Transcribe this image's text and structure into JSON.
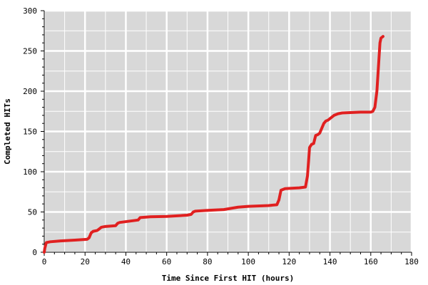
{
  "chart_data": {
    "type": "line",
    "title": "",
    "xlabel": "Time Since First HIT (hours)",
    "ylabel": "Completed HITs",
    "xlim": [
      0,
      180
    ],
    "ylim": [
      0,
      300
    ],
    "x_ticks": [
      "0",
      "20",
      "40",
      "60",
      "80",
      "100",
      "120",
      "140",
      "160",
      "180"
    ],
    "y_ticks": [
      "0",
      "50",
      "100",
      "150",
      "200",
      "250",
      "300"
    ],
    "grid": true,
    "legend": "none",
    "colors": {
      "plot_bg": "#d8d8d8",
      "grid": "#ffffff",
      "line": "#e02020"
    },
    "series": [
      {
        "x": [
          0,
          0.3,
          1,
          3,
          8,
          15,
          21,
          22,
          23,
          24,
          26,
          28,
          30,
          35,
          36,
          37,
          40,
          46,
          47,
          52,
          60,
          70,
          72,
          73,
          74,
          80,
          88,
          95,
          100,
          110,
          114,
          115,
          116,
          118,
          125,
          128,
          129,
          130,
          131,
          132,
          133,
          134,
          135,
          137,
          138,
          139,
          140,
          141,
          142,
          144,
          146,
          150,
          155,
          160,
          161,
          162,
          163,
          164,
          164.5,
          165,
          166
        ],
        "y": [
          0,
          5,
          12,
          13,
          14,
          15,
          16,
          18,
          24,
          26,
          27,
          31,
          32,
          33,
          36,
          37,
          38,
          40,
          43,
          44,
          44.5,
          46,
          47,
          50,
          51,
          52,
          53,
          56,
          57,
          58,
          59,
          65,
          77,
          79,
          80,
          81,
          95,
          130,
          134,
          135,
          145,
          146,
          148,
          160,
          163,
          164,
          166,
          168,
          170,
          172,
          173,
          173.5,
          174,
          174,
          175,
          180,
          200,
          240,
          260,
          266,
          268
        ]
      }
    ]
  }
}
